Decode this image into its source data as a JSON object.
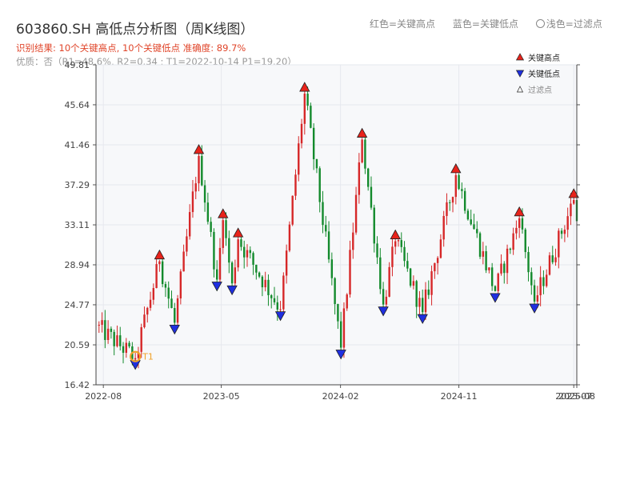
{
  "title": "603860.SH 高低点分析图（周K线图）",
  "top_legend": {
    "red": "红色=关键高点",
    "blue": "蓝色=关键低点",
    "light": "浅色=过滤点"
  },
  "subtitle_result": "识别结果: 10个关键高点, 10个关键低点  准确度: 89.7%",
  "subtitle_quality": "优质：否（R1=48.6%, R2=0.34 ; T1=2022-10-14 P1=19.20）",
  "colors": {
    "up": "#d62728",
    "down": "#138a2c",
    "high_marker": "#e8231b",
    "low_marker": "#1f2fe0",
    "t1": "#f0a22a",
    "grid": "#e6e8ee",
    "plot_bg": "#f7f8fa"
  },
  "chart_data": {
    "type": "candlestick",
    "y_axis": {
      "min": 16.42,
      "max": 49.81,
      "ticks": [
        16.42,
        20.59,
        24.77,
        28.94,
        33.11,
        37.29,
        41.46,
        45.64,
        49.81
      ]
    },
    "x_axis": {
      "start": "2022-07-15",
      "end": "2025-08-01",
      "ticks": [
        {
          "date": "2022-08-01",
          "label": "2022-08"
        },
        {
          "date": "2023-05-01",
          "label": "2023-05"
        },
        {
          "date": "2024-02-01",
          "label": "2024-02"
        },
        {
          "date": "2024-11-01",
          "label": "2024-11"
        },
        {
          "date": "2025-07-25",
          "label": "2025-07"
        },
        {
          "date": "2025-08-01",
          "label": "2025-08"
        }
      ]
    },
    "legend": {
      "position": "top-right",
      "items": [
        {
          "symbol": "up-triangle",
          "label": "关键高点"
        },
        {
          "symbol": "down-triangle",
          "label": "关键低点"
        },
        {
          "symbol": "hollow-triangle",
          "label": "过滤点"
        }
      ]
    },
    "anchors": [
      {
        "date": "2022-07-15",
        "price": 22.6
      },
      {
        "date": "2022-10-14",
        "price": 19.2
      },
      {
        "date": "2022-12-09",
        "price": 29.3
      },
      {
        "date": "2023-01-13",
        "price": 22.9
      },
      {
        "date": "2023-03-10",
        "price": 40.3
      },
      {
        "date": "2023-04-21",
        "price": 27.4
      },
      {
        "date": "2023-05-05",
        "price": 33.6
      },
      {
        "date": "2023-05-26",
        "price": 27.0
      },
      {
        "date": "2023-06-09",
        "price": 31.6
      },
      {
        "date": "2023-09-15",
        "price": 24.3
      },
      {
        "date": "2023-11-10",
        "price": 46.8
      },
      {
        "date": "2024-02-02",
        "price": 20.3
      },
      {
        "date": "2024-03-22",
        "price": 42.0
      },
      {
        "date": "2024-05-10",
        "price": 24.8
      },
      {
        "date": "2024-06-07",
        "price": 31.4
      },
      {
        "date": "2024-08-09",
        "price": 24.0
      },
      {
        "date": "2024-10-25",
        "price": 38.3
      },
      {
        "date": "2025-01-24",
        "price": 26.2
      },
      {
        "date": "2025-03-21",
        "price": 33.8
      },
      {
        "date": "2025-04-25",
        "price": 25.1
      },
      {
        "date": "2025-07-25",
        "price": 35.7
      },
      {
        "date": "2025-08-01",
        "price": 33.5
      }
    ],
    "key_highs": [
      {
        "date": "2022-12-09",
        "price": 29.3
      },
      {
        "date": "2023-03-10",
        "price": 40.3
      },
      {
        "date": "2023-05-05",
        "price": 33.6
      },
      {
        "date": "2023-06-09",
        "price": 31.6
      },
      {
        "date": "2023-11-10",
        "price": 46.8
      },
      {
        "date": "2024-03-22",
        "price": 42.0
      },
      {
        "date": "2024-06-07",
        "price": 31.4
      },
      {
        "date": "2024-10-25",
        "price": 38.3
      },
      {
        "date": "2025-03-21",
        "price": 33.8
      },
      {
        "date": "2025-07-25",
        "price": 35.7
      }
    ],
    "key_lows": [
      {
        "date": "2022-10-14",
        "price": 19.2
      },
      {
        "date": "2023-01-13",
        "price": 22.9
      },
      {
        "date": "2023-04-21",
        "price": 27.4
      },
      {
        "date": "2023-05-26",
        "price": 27.0
      },
      {
        "date": "2023-09-15",
        "price": 24.3
      },
      {
        "date": "2024-02-02",
        "price": 20.3
      },
      {
        "date": "2024-05-10",
        "price": 24.8
      },
      {
        "date": "2024-08-09",
        "price": 24.0
      },
      {
        "date": "2025-01-24",
        "price": 26.2
      },
      {
        "date": "2025-04-25",
        "price": 25.1
      }
    ],
    "t1": {
      "date": "2022-10-14",
      "price": 19.2,
      "label": "T1"
    }
  }
}
